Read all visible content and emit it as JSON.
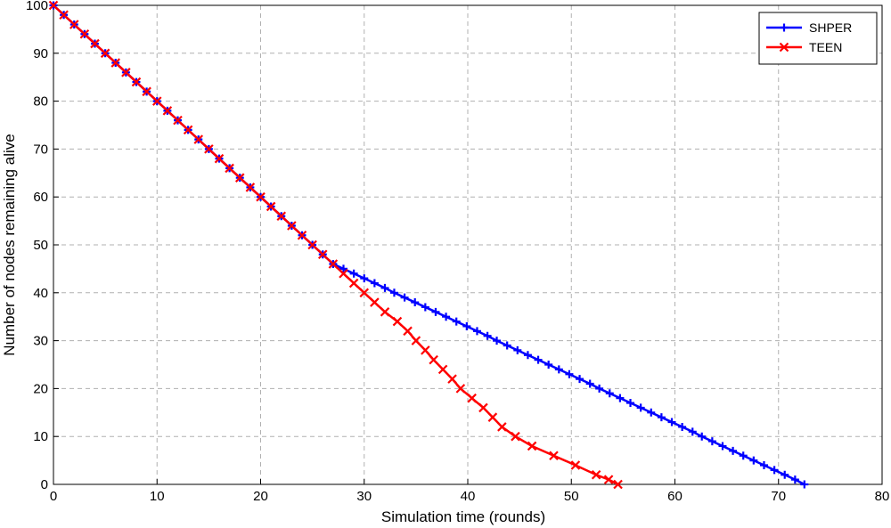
{
  "chart_data": {
    "type": "line",
    "xlabel": "Simulation time (rounds)",
    "ylabel": "Number of nodes remaining alive",
    "xlim": [
      0,
      80
    ],
    "ylim": [
      0,
      100
    ],
    "xticks": [
      0,
      10,
      20,
      30,
      40,
      50,
      60,
      70,
      80
    ],
    "yticks": [
      0,
      10,
      20,
      30,
      40,
      50,
      60,
      70,
      80,
      90,
      100
    ],
    "grid": true,
    "legend": "upper right",
    "series": [
      {
        "name": "SHPER",
        "color": "#0000ff",
        "marker": "+",
        "x": [
          0,
          1,
          2,
          3,
          4,
          5,
          6,
          7,
          8,
          9,
          10,
          11,
          12,
          13,
          14,
          15,
          16,
          17,
          18,
          19,
          20,
          21,
          22,
          23,
          24,
          25,
          26,
          27,
          28.0,
          29.0,
          30.0,
          31.0,
          32.0,
          32.9,
          33.9,
          34.9,
          35.9,
          36.9,
          37.9,
          38.9,
          39.9,
          40.9,
          41.9,
          42.8,
          43.8,
          44.8,
          45.8,
          46.8,
          47.8,
          48.8,
          49.8,
          50.8,
          51.8,
          52.7,
          53.7,
          54.7,
          55.7,
          56.7,
          57.7,
          58.7,
          59.7,
          60.7,
          61.7,
          62.6,
          63.6,
          64.6,
          65.6,
          66.6,
          67.6,
          68.6,
          69.6,
          70.6,
          71.6,
          72.5
        ],
        "values": [
          100,
          98,
          96,
          94,
          92,
          90,
          88,
          86,
          84,
          82,
          80,
          78,
          76,
          74,
          72,
          70,
          68,
          66,
          64,
          62,
          60,
          58,
          56,
          54,
          52,
          50,
          48,
          46,
          45,
          44,
          43,
          42,
          41,
          40,
          39,
          38,
          37,
          36,
          35,
          34,
          33,
          32,
          31,
          30,
          29,
          28,
          27,
          26,
          25,
          24,
          23,
          22,
          21,
          20,
          19,
          18,
          17,
          16,
          15,
          14,
          13,
          12,
          11,
          10,
          9,
          8,
          7,
          6,
          5,
          4,
          3,
          2,
          1,
          0
        ]
      },
      {
        "name": "TEEN",
        "color": "#ff0000",
        "marker": "x",
        "x": [
          0,
          1,
          2,
          3,
          4,
          5,
          6,
          7,
          8,
          9,
          10,
          11,
          12,
          13,
          14,
          15,
          16,
          17,
          18,
          19,
          20,
          21,
          22,
          23,
          24,
          25,
          26,
          27,
          28,
          29,
          30,
          31,
          32,
          33.2,
          34.2,
          35,
          35.9,
          36.7,
          37.6,
          38.5,
          39.3,
          40.4,
          41.5,
          42.4,
          43.3,
          44.6,
          46.2,
          48.3,
          50.4,
          52.4,
          53.6,
          54.5
        ],
        "values": [
          100,
          98,
          96,
          94,
          92,
          90,
          88,
          86,
          84,
          82,
          80,
          78,
          76,
          74,
          72,
          70,
          68,
          66,
          64,
          62,
          60,
          58,
          56,
          54,
          52,
          50,
          48,
          46,
          44,
          42,
          40,
          38,
          36,
          34,
          32,
          30,
          28,
          26,
          24,
          22,
          20,
          18,
          16,
          14,
          12,
          10,
          8,
          6,
          4,
          2,
          1,
          0
        ]
      }
    ]
  }
}
